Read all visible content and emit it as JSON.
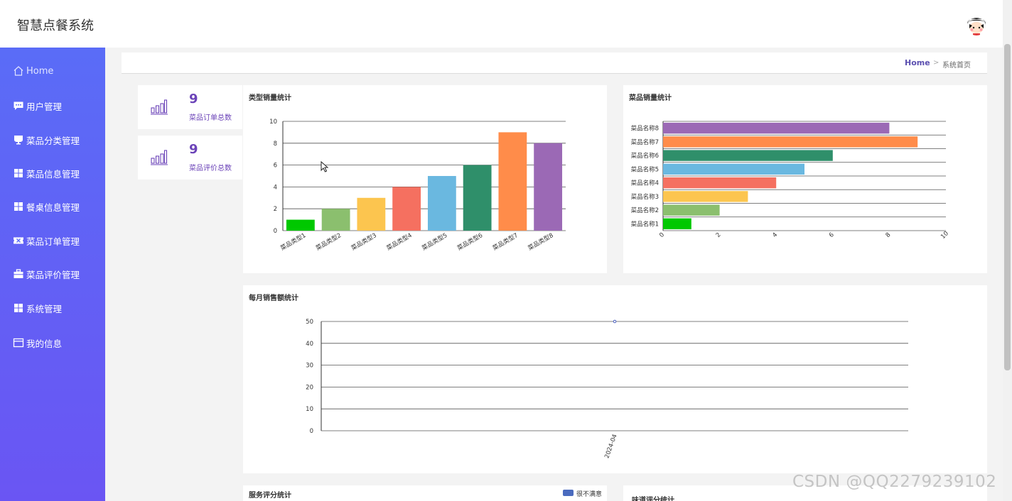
{
  "header": {
    "title": "智慧点餐系统"
  },
  "sidebar": {
    "items": [
      {
        "label": "Home",
        "icon": "home-icon"
      },
      {
        "label": "用户管理",
        "icon": "chat-icon"
      },
      {
        "label": "菜品分类管理",
        "icon": "cup-icon"
      },
      {
        "label": "菜品信息管理",
        "icon": "grid-icon"
      },
      {
        "label": "餐桌信息管理",
        "icon": "grid-icon"
      },
      {
        "label": "菜品订单管理",
        "icon": "ticket-icon"
      },
      {
        "label": "菜品评价管理",
        "icon": "briefcase-icon"
      },
      {
        "label": "系统管理",
        "icon": "grid-icon"
      },
      {
        "label": "我的信息",
        "icon": "card-icon"
      }
    ]
  },
  "breadcrumb": {
    "home": "Home",
    "separator": ">",
    "current": "系统首页"
  },
  "stats": [
    {
      "value": "9",
      "label": "菜品订单总数"
    },
    {
      "value": "9",
      "label": "菜品评价总数"
    }
  ],
  "panels": {
    "type_sales": "类型销量统计",
    "dish_sales": "菜品销量统计",
    "monthly_sales": "每月销售额统计",
    "service_rating": "服务评分统计",
    "taste_rating": "味道评分统计"
  },
  "legend": {
    "service": "很不满意"
  },
  "watermark": "CSDN @QQ2279239102",
  "colors": {
    "accent": "#6b43b8",
    "sidebar_top": "#5a6cf7",
    "sidebar_bottom": "#6a55f3",
    "legend_blue": "#4a6bbf"
  },
  "chart_data": [
    {
      "type": "bar",
      "title": "类型销量统计",
      "categories": [
        "菜品类型1",
        "菜品类型2",
        "菜品类型3",
        "菜品类型4",
        "菜品类型5",
        "菜品类型6",
        "菜品类型7",
        "菜品类型8"
      ],
      "values": [
        1,
        2,
        3,
        4,
        5,
        6,
        9,
        8
      ],
      "colors": [
        "#00c800",
        "#8bbf6e",
        "#fcc54f",
        "#f57060",
        "#6ab8e0",
        "#2f8f6a",
        "#ff8c4a",
        "#9b69b5"
      ],
      "ylim": [
        0,
        10
      ],
      "yticks": [
        0,
        2,
        4,
        6,
        8,
        10
      ],
      "grid": true
    },
    {
      "type": "bar",
      "orientation": "horizontal",
      "title": "菜品销量统计",
      "categories": [
        "菜品名称1",
        "菜品名称2",
        "菜品名称3",
        "菜品名称4",
        "菜品名称5",
        "菜品名称6",
        "菜品名称7",
        "菜品名称8"
      ],
      "values": [
        1,
        2,
        3,
        4,
        5,
        6,
        9,
        8
      ],
      "colors": [
        "#00c800",
        "#8bbf6e",
        "#fcc54f",
        "#f57060",
        "#6ab8e0",
        "#2f8f6a",
        "#ff8c4a",
        "#9b69b5"
      ],
      "xlim": [
        0,
        10
      ],
      "xticks": [
        0,
        2,
        4,
        6,
        8,
        10
      ],
      "grid": true
    },
    {
      "type": "line",
      "title": "每月销售额统计",
      "x": [
        "2024-04"
      ],
      "values": [
        50
      ],
      "ylim": [
        0,
        50
      ],
      "yticks": [
        0,
        10,
        20,
        30,
        40,
        50
      ],
      "color": "#4a5fbf",
      "grid": true
    }
  ]
}
